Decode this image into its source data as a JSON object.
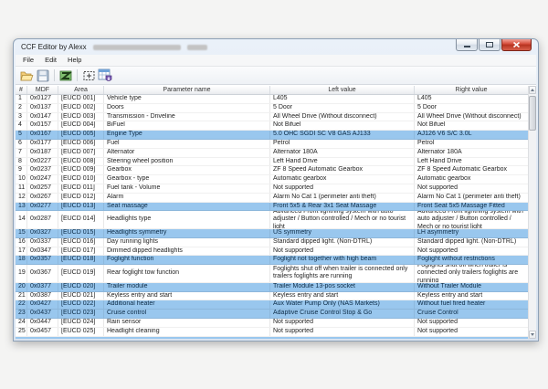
{
  "window": {
    "title": "CCF Editor by Alexx"
  },
  "menu": {
    "items": [
      "File",
      "Edit",
      "Help"
    ]
  },
  "toolbar": {
    "icons": [
      {
        "name": "open-icon"
      },
      {
        "name": "save-icon"
      },
      {
        "name": "compare-icon"
      },
      {
        "name": "select-region-icon"
      },
      {
        "name": "table-shield-icon"
      }
    ]
  },
  "colors": {
    "highlight": "#99c7ee",
    "close_button": "#d34836",
    "titlebar": "#e9eff7"
  },
  "table": {
    "columns": [
      "#",
      "MDF",
      "Area",
      "Parameter name",
      "Left value",
      "Right value"
    ],
    "rows": [
      {
        "num": "1",
        "mdf": "0x0127",
        "area": "[EUCD 001]",
        "param": "Vehicle type",
        "left": "L405",
        "right": "L405",
        "highlight": false,
        "lines": 1
      },
      {
        "num": "2",
        "mdf": "0x0137",
        "area": "[EUCD 002]",
        "param": "Doors",
        "left": "5 Door",
        "right": "5 Door",
        "highlight": false,
        "lines": 1
      },
      {
        "num": "3",
        "mdf": "0x0147",
        "area": "[EUCD 003]",
        "param": "Transmission - Driveline",
        "left": "All Wheel Drive (Without disconnect)",
        "right": "All Wheel Drive (Without disconnect)",
        "highlight": false,
        "lines": 1
      },
      {
        "num": "4",
        "mdf": "0x0157",
        "area": "[EUCD 004]",
        "param": "BiFuel",
        "left": "Not Bifuel",
        "right": "Not Bifuel",
        "highlight": false,
        "lines": 1
      },
      {
        "num": "5",
        "mdf": "0x0167",
        "area": "[EUCD 005]",
        "param": "Engine Type",
        "left": "5.0 OHC SGDI SC V8 GAS AJ133",
        "right": "AJ126 V6 S/C 3.0L",
        "highlight": true,
        "lines": 1
      },
      {
        "num": "6",
        "mdf": "0x0177",
        "area": "[EUCD 006]",
        "param": "Fuel",
        "left": "Petrol",
        "right": "Petrol",
        "highlight": false,
        "lines": 1
      },
      {
        "num": "7",
        "mdf": "0x0187",
        "area": "[EUCD 007]",
        "param": "Alternator",
        "left": "Alternator 180A",
        "right": "Alternator 180A",
        "highlight": false,
        "lines": 1
      },
      {
        "num": "8",
        "mdf": "0x0227",
        "area": "[EUCD 008]",
        "param": "Steering wheel position",
        "left": "Left Hand Drive",
        "right": "Left Hand Drive",
        "highlight": false,
        "lines": 1
      },
      {
        "num": "9",
        "mdf": "0x0237",
        "area": "[EUCD 009]",
        "param": "Gearbox",
        "left": "ZF 8 Speed Automatic Gearbox",
        "right": "ZF 8 Speed Automatic Gearbox",
        "highlight": false,
        "lines": 1
      },
      {
        "num": "10",
        "mdf": "0x0247",
        "area": "[EUCD 010]",
        "param": "Gearbox - type",
        "left": "Automatic gearbox",
        "right": "Automatic gearbox",
        "highlight": false,
        "lines": 1
      },
      {
        "num": "11",
        "mdf": "0x0257",
        "area": "[EUCD 011]",
        "param": "Fuel tank - Volume",
        "left": "Not supported",
        "right": "Not supported",
        "highlight": false,
        "lines": 1
      },
      {
        "num": "12",
        "mdf": "0x0267",
        "area": "[EUCD 012]",
        "param": "Alarm",
        "left": "Alarm No Cat 1 (perimeter anti theft)",
        "right": "Alarm No Cat 1 (perimeter anti theft)",
        "highlight": false,
        "lines": 1
      },
      {
        "num": "13",
        "mdf": "0x0277",
        "area": "[EUCD 013]",
        "param": "Seat massage",
        "left": "Front 5x5 & Rear 3x1 Seat Massage",
        "right": "Front Seat 5x5 Massage Fitted",
        "highlight": true,
        "lines": 1
      },
      {
        "num": "14",
        "mdf": "0x0287",
        "area": "[EUCD 014]",
        "param": "Headlights type",
        "left": "Advanced Front lightning system with auto adjuster / Button controlled / Mech or no tourist light",
        "right": "Advanced Front lightning system with auto adjuster / Button controlled / Mech or no tourist light",
        "highlight": false,
        "lines": 2
      },
      {
        "num": "15",
        "mdf": "0x0327",
        "area": "[EUCD 015]",
        "param": "Headlights symmetry",
        "left": "US symmetry",
        "right": "LH asymmetry",
        "highlight": true,
        "lines": 1
      },
      {
        "num": "16",
        "mdf": "0x0337",
        "area": "[EUCD 016]",
        "param": "Day running lights",
        "left": "Standard dipped light. (Non-DTRL)",
        "right": "Standard dipped light. (Non-DTRL)",
        "highlight": false,
        "lines": 1
      },
      {
        "num": "17",
        "mdf": "0x0347",
        "area": "[EUCD 017]",
        "param": "Dimmed dipped headlights",
        "left": "Not supported",
        "right": "Not supported",
        "highlight": false,
        "lines": 1
      },
      {
        "num": "18",
        "mdf": "0x0357",
        "area": "[EUCD 018]",
        "param": "Foglight function",
        "left": "Foglight not together with high beam",
        "right": "Foglight without restrictions",
        "highlight": true,
        "lines": 1
      },
      {
        "num": "19",
        "mdf": "0x0367",
        "area": "[EUCD 019]",
        "param": "Rear foglight tow function",
        "left": "Foglights shut off when trailer is connected only trailers foglights are running",
        "right": "Foglights shut off when trailer is connected only trailers foglights are running",
        "highlight": false,
        "lines": 2
      },
      {
        "num": "20",
        "mdf": "0x0377",
        "area": "[EUCD 020]",
        "param": "Trailer module",
        "left": "Trailer Module 13-pos socket",
        "right": "Without Trailer Module",
        "highlight": true,
        "lines": 1
      },
      {
        "num": "21",
        "mdf": "0x0387",
        "area": "[EUCD 021]",
        "param": "Keyless entry and start",
        "left": "Keyless entry and start",
        "right": "Keyless entry and start",
        "highlight": false,
        "lines": 1
      },
      {
        "num": "22",
        "mdf": "0x0427",
        "area": "[EUCD 022]",
        "param": "Additional heater",
        "left": "Aux Water Pump Only (NAS Markets)",
        "right": "Without fuel fired heater",
        "highlight": true,
        "lines": 1
      },
      {
        "num": "23",
        "mdf": "0x0437",
        "area": "[EUCD 023]",
        "param": "Cruise control",
        "left": "Adaptive Cruise Control Stop & Go",
        "right": "Cruise Control",
        "highlight": true,
        "lines": 1
      },
      {
        "num": "24",
        "mdf": "0x0447",
        "area": "[EUCD 024]",
        "param": "Rain sensor",
        "left": "Not supported",
        "right": "Not supported",
        "highlight": false,
        "lines": 1
      },
      {
        "num": "25",
        "mdf": "0x0457",
        "area": "[EUCD 025]",
        "param": "Headlight cleaning",
        "left": "Not supported",
        "right": "Not supported",
        "highlight": false,
        "lines": 1
      }
    ]
  }
}
